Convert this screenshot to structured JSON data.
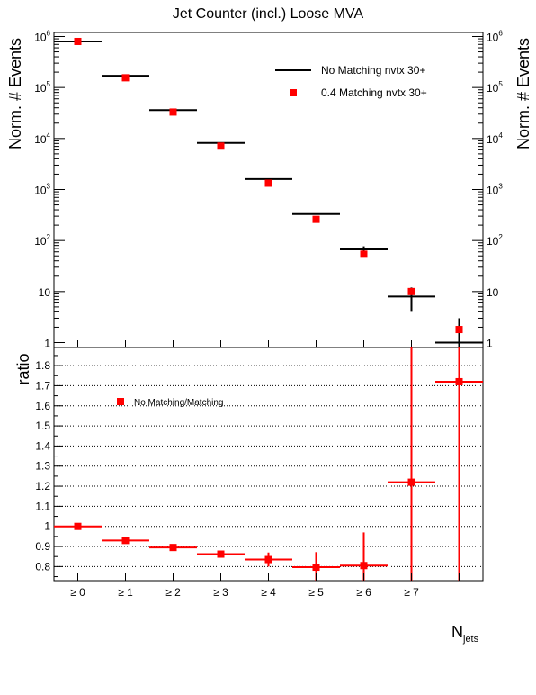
{
  "chart_data": [
    {
      "type": "scatter",
      "title": "Jet Counter (incl.) Loose MVA",
      "ylabel": "Norm. # Events",
      "ylabel_right": "Norm. # Events",
      "yscale": "log",
      "ylim": [
        0.8,
        1200000
      ],
      "y_ticks": [
        {
          "v": 1,
          "label": "1"
        },
        {
          "v": 10,
          "label": "10"
        },
        {
          "v": 100,
          "base": "10",
          "exp": "2"
        },
        {
          "v": 1000,
          "base": "10",
          "exp": "3"
        },
        {
          "v": 10000,
          "base": "10",
          "exp": "4"
        },
        {
          "v": 100000,
          "base": "10",
          "exp": "5"
        },
        {
          "v": 1000000,
          "base": "10",
          "exp": "6"
        }
      ],
      "grid": false,
      "legend_position": "top-right",
      "series": [
        {
          "name": "No Matching nvtx 30+",
          "style": "horizontal-bar-with-errors",
          "color": "#000000",
          "x": [
            0,
            1,
            2,
            3,
            4,
            5,
            6,
            7,
            8
          ],
          "y": [
            800000,
            170000,
            36000,
            8200,
            1600,
            330,
            67,
            8,
            1
          ],
          "y_err_low": [
            0,
            0,
            0,
            0,
            0,
            0,
            10,
            4,
            1
          ],
          "y_err_high": [
            0,
            0,
            0,
            0,
            0,
            0,
            10,
            4,
            2
          ]
        },
        {
          "name": "0.4 Matching nvtx 30+",
          "style": "square-marker",
          "color": "#ff0000",
          "x": [
            0,
            1,
            2,
            3,
            4,
            5,
            6,
            7,
            8
          ],
          "y": [
            800000,
            155000,
            33000,
            7100,
            1330,
            260,
            54,
            10,
            1.8
          ]
        }
      ]
    },
    {
      "type": "scatter",
      "ylabel": "ratio",
      "xlabel_main": "N",
      "xlabel_sub": "jets",
      "ylim": [
        0.73,
        1.89
      ],
      "y_ticks": [
        {
          "v": 0.8,
          "label": "0.8"
        },
        {
          "v": 0.9,
          "label": "0.9"
        },
        {
          "v": 1.0,
          "label": "1"
        },
        {
          "v": 1.1,
          "label": "1.1"
        },
        {
          "v": 1.2,
          "label": "1.2"
        },
        {
          "v": 1.3,
          "label": "1.3"
        },
        {
          "v": 1.4,
          "label": "1.4"
        },
        {
          "v": 1.5,
          "label": "1.5"
        },
        {
          "v": 1.6,
          "label": "1.6"
        },
        {
          "v": 1.7,
          "label": "1.7"
        },
        {
          "v": 1.8,
          "label": "1.8"
        }
      ],
      "grid": true,
      "legend_position": "top-left",
      "categories": [
        "≥ 0",
        "≥ 1",
        "≥ 2",
        "≥ 3",
        "≥ 4",
        "≥ 5",
        "≥ 6",
        "≥ 7"
      ],
      "series": [
        {
          "name": "No Matching/Matching",
          "color": "#ff0000",
          "x": [
            0,
            1,
            2,
            3,
            4,
            5,
            6,
            7,
            8
          ],
          "y": [
            1.0,
            0.93,
            0.895,
            0.862,
            0.835,
            0.797,
            0.805,
            1.22,
            1.72
          ],
          "y_err": [
            0,
            0,
            0,
            0,
            0.035,
            0.075,
            0.165,
            1.0,
            1.0
          ]
        }
      ]
    }
  ]
}
